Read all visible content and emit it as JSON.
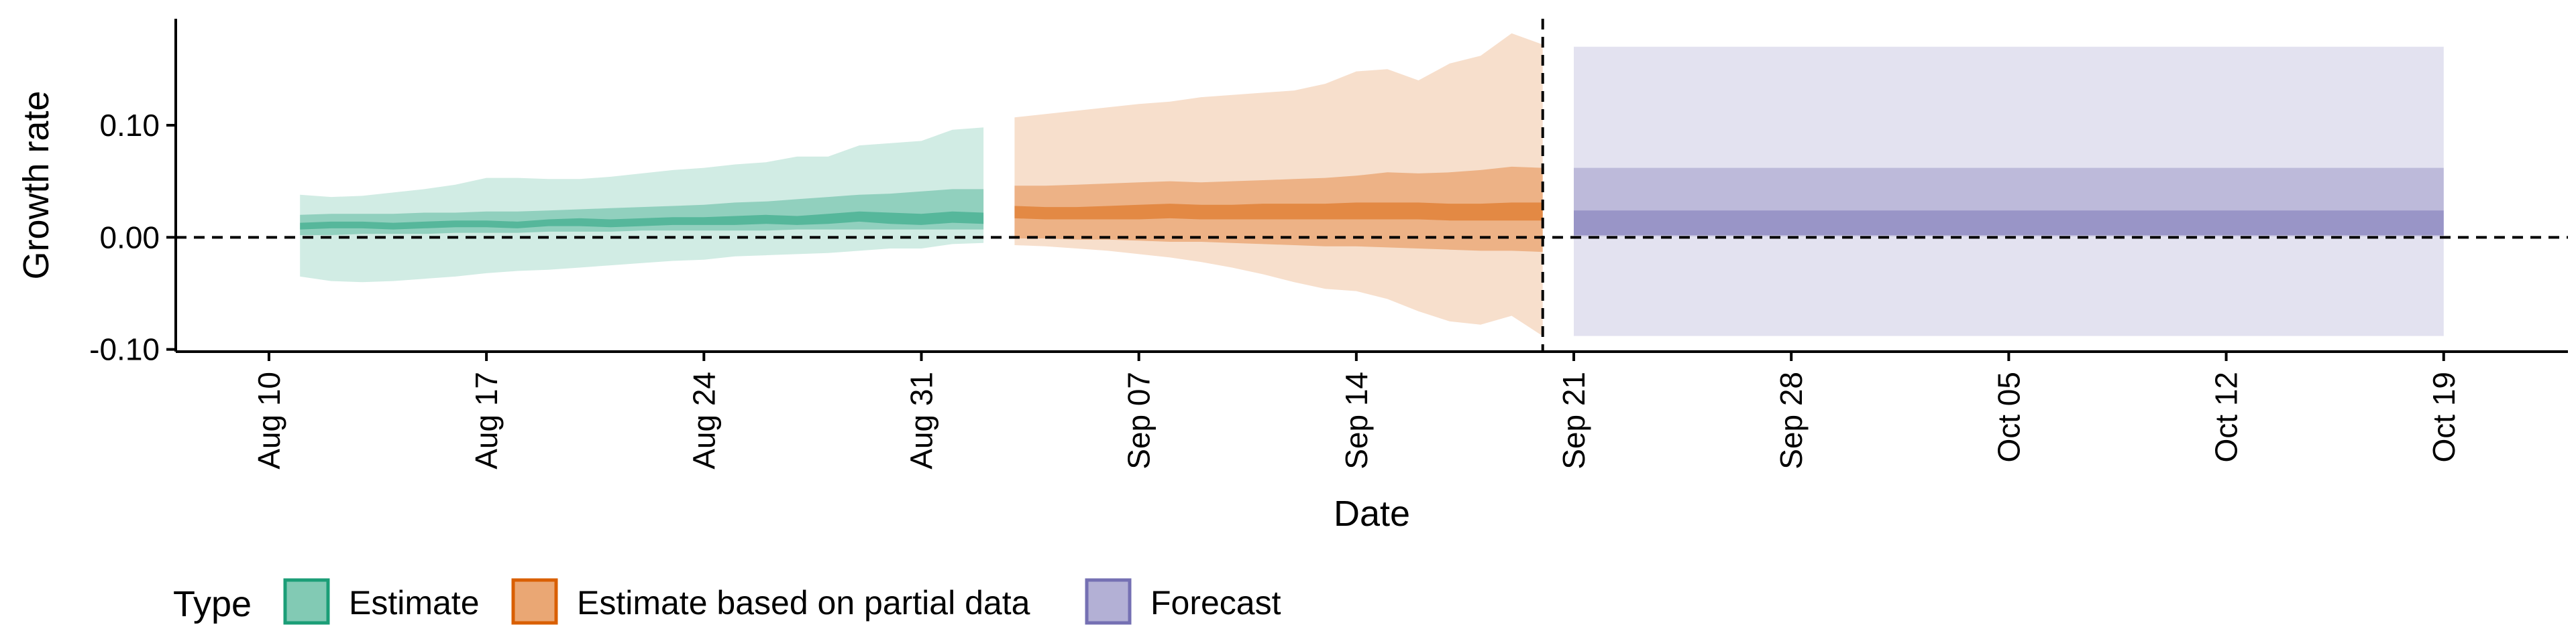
{
  "chart_data": {
    "type": "area",
    "title": "",
    "xlabel": "Date",
    "ylabel": "Growth rate",
    "x_range": [
      "2020-08-07",
      "2020-10-23"
    ],
    "ylim": [
      -0.102,
      0.195
    ],
    "yticks": [
      {
        "value": -0.1,
        "label": "-0.10"
      },
      {
        "value": 0.0,
        "label": "0.00"
      },
      {
        "value": 0.1,
        "label": "0.10"
      }
    ],
    "xticks": [
      {
        "date": "2020-08-10",
        "label": "Aug 10"
      },
      {
        "date": "2020-08-17",
        "label": "Aug 17"
      },
      {
        "date": "2020-08-24",
        "label": "Aug 24"
      },
      {
        "date": "2020-08-31",
        "label": "Aug 31"
      },
      {
        "date": "2020-09-07",
        "label": "Sep 07"
      },
      {
        "date": "2020-09-14",
        "label": "Sep 14"
      },
      {
        "date": "2020-09-21",
        "label": "Sep 21"
      },
      {
        "date": "2020-09-28",
        "label": "Sep 28"
      },
      {
        "date": "2020-10-05",
        "label": "Oct 05"
      },
      {
        "date": "2020-10-12",
        "label": "Oct 12"
      },
      {
        "date": "2020-10-19",
        "label": "Oct 19"
      }
    ],
    "reference_lines": {
      "horizontal_y": 0.0,
      "vertical_date": "2020-09-20"
    },
    "grid": false,
    "legend": {
      "title": "Type",
      "position": "bottom-left",
      "entries": [
        "Estimate",
        "Estimate based on partial data",
        "Forecast"
      ]
    },
    "series": [
      {
        "name": "Estimate",
        "color": "#1b9e77",
        "x": [
          "2020-08-11",
          "2020-08-12",
          "2020-08-13",
          "2020-08-14",
          "2020-08-15",
          "2020-08-16",
          "2020-08-17",
          "2020-08-18",
          "2020-08-19",
          "2020-08-20",
          "2020-08-21",
          "2020-08-22",
          "2020-08-23",
          "2020-08-24",
          "2020-08-25",
          "2020-08-26",
          "2020-08-27",
          "2020-08-28",
          "2020-08-29",
          "2020-08-30",
          "2020-08-31",
          "2020-09-01",
          "2020-09-02"
        ],
        "outer_upper": [
          0.038,
          0.036,
          0.037,
          0.04,
          0.043,
          0.047,
          0.053,
          0.053,
          0.052,
          0.052,
          0.054,
          0.057,
          0.06,
          0.062,
          0.065,
          0.067,
          0.072,
          0.072,
          0.082,
          0.084,
          0.086,
          0.096,
          0.098
        ],
        "outer_lower": [
          -0.035,
          -0.039,
          -0.04,
          -0.039,
          -0.037,
          -0.035,
          -0.032,
          -0.03,
          -0.029,
          -0.027,
          -0.025,
          -0.023,
          -0.021,
          -0.02,
          -0.017,
          -0.016,
          -0.015,
          -0.014,
          -0.012,
          -0.01,
          -0.01,
          -0.006,
          -0.005
        ],
        "inner_upper": [
          0.02,
          0.021,
          0.021,
          0.021,
          0.022,
          0.022,
          0.023,
          0.023,
          0.024,
          0.025,
          0.026,
          0.027,
          0.028,
          0.029,
          0.031,
          0.032,
          0.034,
          0.036,
          0.038,
          0.039,
          0.041,
          0.043,
          0.043
        ],
        "inner_lower": [
          0.002,
          0.002,
          0.003,
          0.003,
          0.003,
          0.004,
          0.004,
          0.004,
          0.005,
          0.005,
          0.005,
          0.006,
          0.006,
          0.006,
          0.006,
          0.006,
          0.007,
          0.007,
          0.007,
          0.007,
          0.007,
          0.007,
          0.007
        ],
        "core_upper": [
          0.013,
          0.014,
          0.014,
          0.013,
          0.014,
          0.015,
          0.015,
          0.014,
          0.016,
          0.017,
          0.016,
          0.017,
          0.018,
          0.018,
          0.019,
          0.02,
          0.019,
          0.021,
          0.023,
          0.022,
          0.021,
          0.023,
          0.022
        ],
        "core_lower": [
          0.007,
          0.008,
          0.008,
          0.007,
          0.008,
          0.009,
          0.009,
          0.008,
          0.01,
          0.01,
          0.009,
          0.01,
          0.011,
          0.011,
          0.011,
          0.012,
          0.011,
          0.012,
          0.014,
          0.012,
          0.011,
          0.013,
          0.012
        ]
      },
      {
        "name": "Estimate based on partial data",
        "color": "#d95f02",
        "x": [
          "2020-09-03",
          "2020-09-04",
          "2020-09-05",
          "2020-09-06",
          "2020-09-07",
          "2020-09-08",
          "2020-09-09",
          "2020-09-10",
          "2020-09-11",
          "2020-09-12",
          "2020-09-13",
          "2020-09-14",
          "2020-09-15",
          "2020-09-16",
          "2020-09-17",
          "2020-09-18",
          "2020-09-19",
          "2020-09-20"
        ],
        "outer_upper": [
          0.107,
          0.11,
          0.113,
          0.116,
          0.119,
          0.121,
          0.125,
          0.127,
          0.129,
          0.131,
          0.137,
          0.148,
          0.15,
          0.14,
          0.155,
          0.162,
          0.182,
          0.172
        ],
        "outer_lower": [
          -0.007,
          -0.008,
          -0.01,
          -0.012,
          -0.015,
          -0.018,
          -0.022,
          -0.027,
          -0.033,
          -0.04,
          -0.046,
          -0.048,
          -0.055,
          -0.066,
          -0.075,
          -0.078,
          -0.07,
          -0.088
        ],
        "inner_upper": [
          0.046,
          0.046,
          0.047,
          0.048,
          0.049,
          0.05,
          0.049,
          0.05,
          0.051,
          0.052,
          0.053,
          0.055,
          0.058,
          0.057,
          0.058,
          0.06,
          0.063,
          0.062
        ],
        "inner_lower": [
          -0.001,
          -0.001,
          -0.002,
          -0.002,
          -0.003,
          -0.004,
          -0.004,
          -0.005,
          -0.006,
          -0.007,
          -0.008,
          -0.008,
          -0.009,
          -0.01,
          -0.011,
          -0.012,
          -0.012,
          -0.013
        ],
        "core_upper": [
          0.028,
          0.027,
          0.027,
          0.028,
          0.029,
          0.03,
          0.029,
          0.029,
          0.03,
          0.03,
          0.03,
          0.031,
          0.031,
          0.031,
          0.03,
          0.03,
          0.031,
          0.031
        ],
        "core_lower": [
          0.017,
          0.016,
          0.016,
          0.016,
          0.016,
          0.017,
          0.016,
          0.016,
          0.016,
          0.016,
          0.016,
          0.016,
          0.016,
          0.016,
          0.015,
          0.015,
          0.015,
          0.015
        ]
      },
      {
        "name": "Forecast",
        "color": "#7570b3",
        "x": [
          "2020-09-21",
          "2020-10-19"
        ],
        "outer_upper": [
          0.17,
          0.17
        ],
        "outer_lower": [
          -0.088,
          -0.088
        ],
        "inner_upper": [
          0.062,
          0.062
        ],
        "inner_lower": [
          0.001,
          0.001
        ],
        "core_upper": [
          0.024,
          0.024
        ],
        "core_lower": [
          0.002,
          0.002
        ]
      }
    ]
  }
}
